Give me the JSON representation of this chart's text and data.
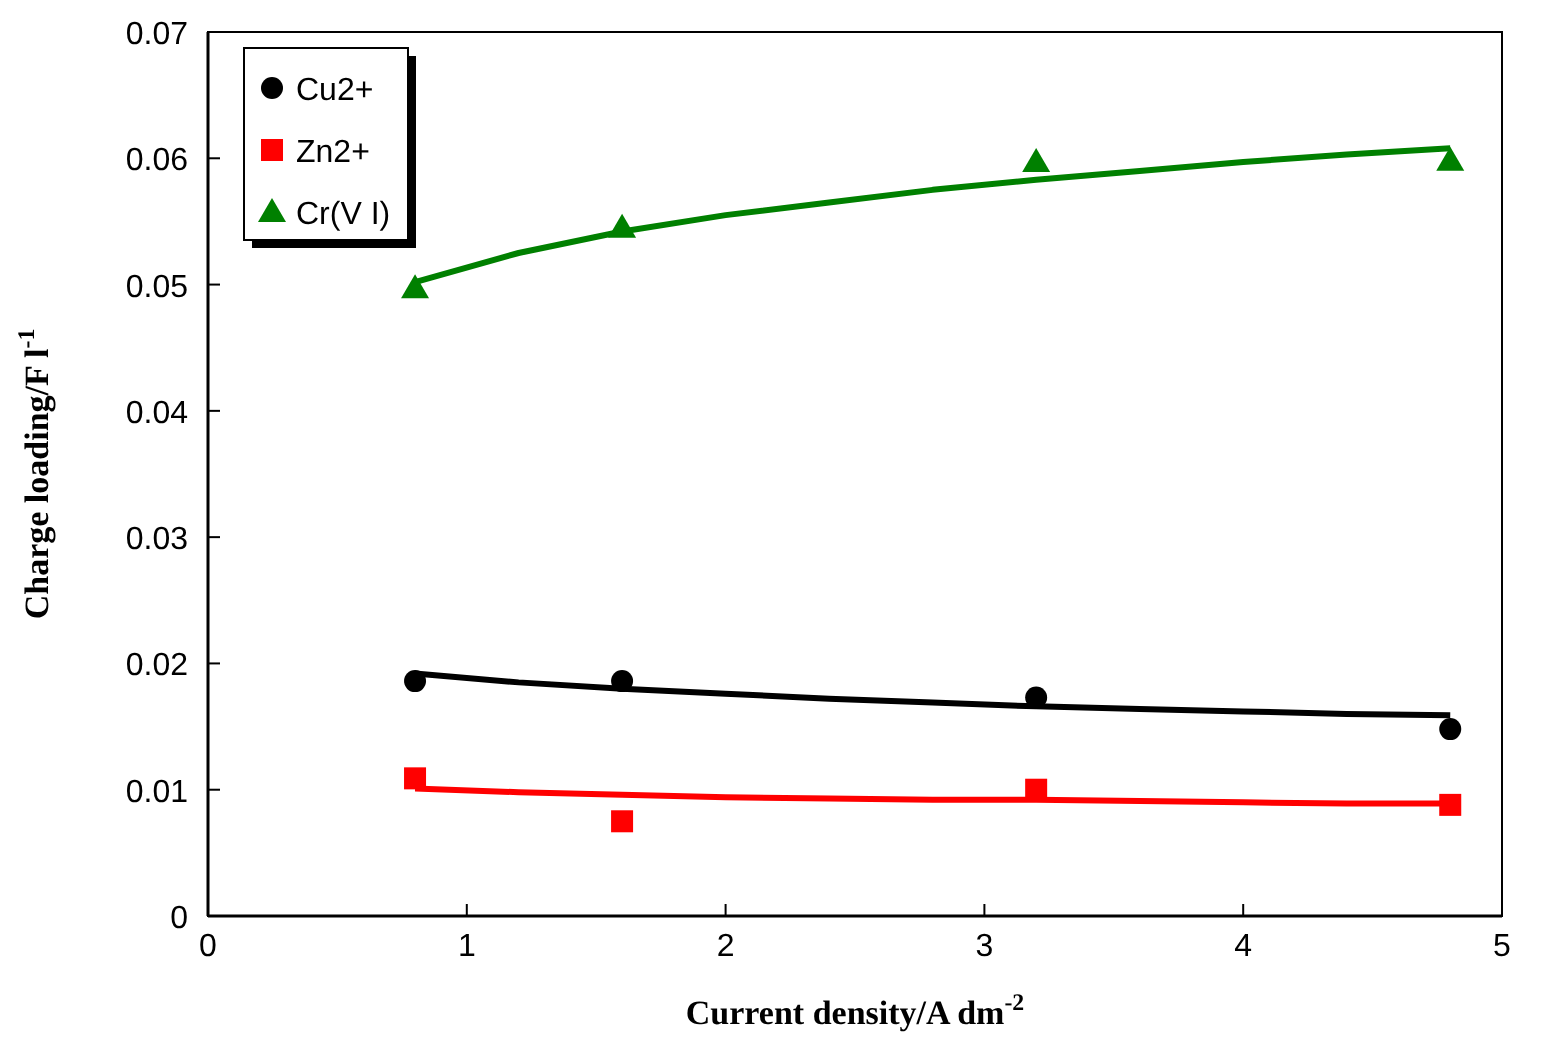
{
  "chart_data": {
    "type": "scatter",
    "xlabel": "Current density/A dm$^{-2}$",
    "ylabel": "Charge loading/F l$^{-1}$",
    "xlim": [
      0,
      5
    ],
    "xticks": [
      0,
      1,
      2,
      3,
      4,
      5
    ],
    "ylim": [
      0,
      0.07
    ],
    "yticks": [
      0,
      0.01,
      0.02,
      0.03,
      0.04,
      0.05,
      0.06,
      0.07
    ],
    "grid": false,
    "legend": "top left",
    "series": [
      {
        "name": "Cu2+",
        "color": "#000000",
        "marker": "circle",
        "x": [
          0.8,
          1.6,
          3.2,
          4.8
        ],
        "values": [
          0.0186,
          0.0186,
          0.0173,
          0.0148
        ]
      },
      {
        "name": "Zn2+",
        "color": "#ff0000",
        "marker": "square",
        "x": [
          0.8,
          1.6,
          3.2,
          4.8
        ],
        "values": [
          0.0109,
          0.0075,
          0.01,
          0.0088
        ]
      },
      {
        "name": "Cr(V I)",
        "color": "#008000",
        "marker": "triangle",
        "x": [
          0.8,
          1.6,
          3.2,
          4.8
        ],
        "values": [
          0.0497,
          0.0545,
          0.0597,
          0.0598
        ]
      },
      {
        "type": "line",
        "color": "#000000",
        "marker": "none",
        "line_style": "solid",
        "x": [
          0.8,
          1.2,
          1.6,
          2.0,
          2.4,
          2.8,
          3.2,
          3.6,
          4.0,
          4.4,
          4.8
        ],
        "values": [
          0.0192,
          0.0185,
          0.018,
          0.0176,
          0.0172,
          0.0169,
          0.0166,
          0.0164,
          0.0162,
          0.016,
          0.0159
        ]
      },
      {
        "type": "line",
        "color": "#ff0000",
        "marker": "none",
        "line_style": "solid",
        "x": [
          0.8,
          1.2,
          1.6,
          2.0,
          2.4,
          2.8,
          3.2,
          3.6,
          4.0,
          4.4,
          4.8
        ],
        "values": [
          0.0101,
          0.0098,
          0.0096,
          0.0094,
          0.0093,
          0.0092,
          0.0092,
          0.0091,
          0.009,
          0.0089,
          0.0089
        ]
      },
      {
        "type": "line",
        "color": "#008000",
        "marker": "none",
        "line_style": "solid",
        "x": [
          0.8,
          1.2,
          1.6,
          2.0,
          2.4,
          2.8,
          3.2,
          3.6,
          4.0,
          4.4,
          4.8
        ],
        "values": [
          0.0502,
          0.0525,
          0.0542,
          0.0555,
          0.0565,
          0.0575,
          0.0583,
          0.059,
          0.0597,
          0.0603,
          0.0608
        ]
      }
    ]
  }
}
